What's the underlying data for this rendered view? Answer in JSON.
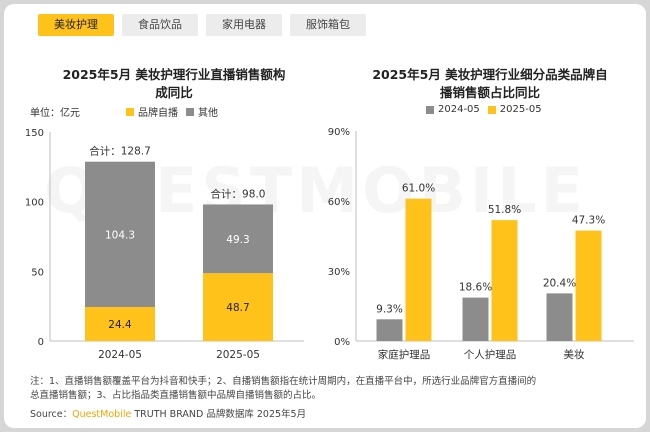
{
  "tabs": [
    {
      "label": "美妆护理",
      "active": true
    },
    {
      "label": "食品饮品",
      "active": false
    },
    {
      "label": "家用电器",
      "active": false
    },
    {
      "label": "服饰箱包",
      "active": false
    }
  ],
  "colors": {
    "self": "#ffc21a",
    "other": "#8c8c8c",
    "prev": "#8c8c8c",
    "curr": "#ffc21a"
  },
  "left": {
    "title_line1": "2025年5月 美妆护理行业直播销售额构",
    "title_line2": "成同比",
    "unit": "单位：亿元",
    "legend_self": "品牌自播",
    "legend_other": "其他",
    "total_prefix": "合计："
  },
  "right": {
    "title_line1": "2025年5月 美妆护理行业细分品类品牌自",
    "title_line2": "播销售额占比同比",
    "legend_prev": "2024-05",
    "legend_curr": "2025-05"
  },
  "chart_data": [
    {
      "type": "bar",
      "stacked": true,
      "title": "2025年5月 美妆护理行业直播销售额构成同比",
      "ylabel": "单位：亿元",
      "categories": [
        "2024-05",
        "2025-05"
      ],
      "series": [
        {
          "name": "品牌自播",
          "values": [
            24.4,
            48.7
          ]
        },
        {
          "name": "其他",
          "values": [
            104.3,
            49.3
          ]
        }
      ],
      "totals": [
        128.7,
        98.0
      ],
      "ylim": [
        0,
        150
      ],
      "yticks": [
        0,
        50,
        100,
        150
      ],
      "legend": "top-left",
      "grid": false
    },
    {
      "type": "bar",
      "title": "2025年5月 美妆护理行业细分品类品牌自播销售额占比同比",
      "categories": [
        "家庭护理品",
        "个人护理品",
        "美妆"
      ],
      "series": [
        {
          "name": "2024-05",
          "values": [
            9.3,
            18.6,
            20.4
          ]
        },
        {
          "name": "2025-05",
          "values": [
            61.0,
            51.8,
            47.3
          ]
        }
      ],
      "ylim": [
        0,
        90
      ],
      "yticks": [
        "0%",
        "30%",
        "60%",
        "90%"
      ],
      "legend": "top-left",
      "grid": false
    }
  ],
  "note_line1": "注：1、直播销售额覆盖平台为抖音和快手；2、自播销售额指在统计周期内，在直播平台中，所选行业品牌官方直播间的",
  "note_line2": "总直播销售额；3、占比指品类直播销售额中品牌自播销售额的占比。",
  "source_prefix": "Source：",
  "source_brand": "QuestMobile",
  "source_rest": " TRUTH BRAND 品牌数据库 2025年5月",
  "watermark": "QUESTMOBILE"
}
